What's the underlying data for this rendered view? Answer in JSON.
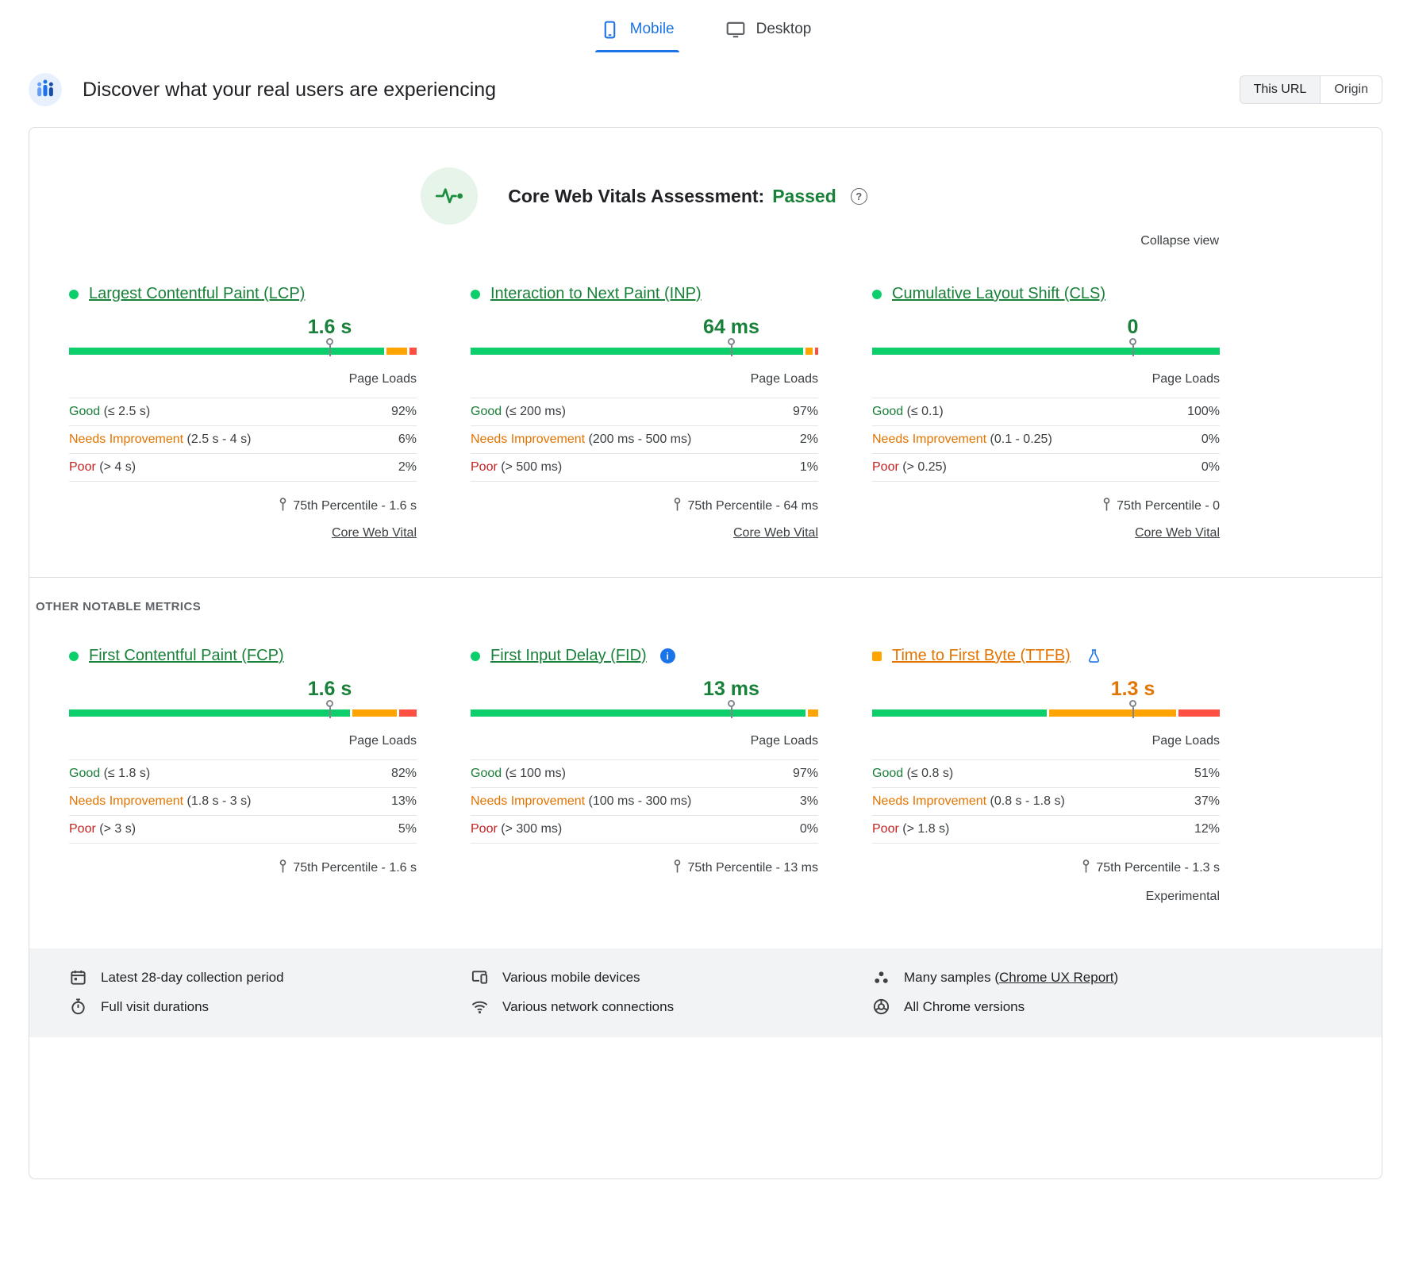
{
  "colors": {
    "blue": "#1a73e8",
    "green-text": "#188038",
    "green-bar": "#0cce6b",
    "orange-text": "#e37400",
    "orange-bar": "#ffa400",
    "red-text": "#c5221f",
    "red-bar": "#ff4e42",
    "border": "#dadce0",
    "footer-bg": "#f1f3f4",
    "assessment-icon-bg": "#e6f4ea"
  },
  "tabs": [
    {
      "label": "Mobile",
      "icon": "mobile-icon",
      "active": true
    },
    {
      "label": "Desktop",
      "icon": "desktop-icon",
      "active": false
    }
  ],
  "field_header": {
    "icon": "field-users-icon",
    "title": "Discover what your real users are experiencing",
    "scope": [
      {
        "label": "This URL",
        "active": true
      },
      {
        "label": "Origin",
        "active": false
      }
    ]
  },
  "assessment": {
    "icon": "pulse-icon",
    "title": "Core Web Vitals Assessment:",
    "result": "Passed",
    "collapse_label": "Collapse view"
  },
  "other_metrics_label": "OTHER NOTABLE METRICS",
  "page_loads_label": "Page Loads",
  "metrics": [
    {
      "id": "lcp",
      "title": "Largest Contentful Paint (LCP)",
      "status": "good",
      "value": "1.6 s",
      "marker_pct": 75,
      "distribution": {
        "good": 92,
        "needs_improvement": 6,
        "poor": 2
      },
      "rows": [
        {
          "label": "Good",
          "range": "(≤ 2.5 s)",
          "value": "92%"
        },
        {
          "label": "Needs Improvement",
          "range": "(2.5 s - 4 s)",
          "value": "6%"
        },
        {
          "label": "Poor",
          "range": "(> 4 s)",
          "value": "2%"
        }
      ],
      "percentile": "75th Percentile - 1.6 s",
      "link": "Core Web Vital"
    },
    {
      "id": "inp",
      "title": "Interaction to Next Paint (INP)",
      "status": "good",
      "value": "64 ms",
      "marker_pct": 75,
      "distribution": {
        "good": 97,
        "needs_improvement": 2,
        "poor": 1
      },
      "rows": [
        {
          "label": "Good",
          "range": "(≤ 200 ms)",
          "value": "97%"
        },
        {
          "label": "Needs Improvement",
          "range": "(200 ms - 500 ms)",
          "value": "2%"
        },
        {
          "label": "Poor",
          "range": "(> 500 ms)",
          "value": "1%"
        }
      ],
      "percentile": "75th Percentile - 64 ms",
      "link": "Core Web Vital"
    },
    {
      "id": "cls",
      "title": "Cumulative Layout Shift (CLS)",
      "status": "good",
      "value": "0",
      "marker_pct": 75,
      "distribution": {
        "good": 100,
        "needs_improvement": 0,
        "poor": 0
      },
      "rows": [
        {
          "label": "Good",
          "range": "(≤ 0.1)",
          "value": "100%"
        },
        {
          "label": "Needs Improvement",
          "range": "(0.1 - 0.25)",
          "value": "0%"
        },
        {
          "label": "Poor",
          "range": "(> 0.25)",
          "value": "0%"
        }
      ],
      "percentile": "75th Percentile - 0",
      "link": "Core Web Vital"
    },
    {
      "id": "fcp",
      "title": "First Contentful Paint (FCP)",
      "status": "good",
      "value": "1.6 s",
      "marker_pct": 75,
      "distribution": {
        "good": 82,
        "needs_improvement": 13,
        "poor": 5
      },
      "rows": [
        {
          "label": "Good",
          "range": "(≤ 1.8 s)",
          "value": "82%"
        },
        {
          "label": "Needs Improvement",
          "range": "(1.8 s - 3 s)",
          "value": "13%"
        },
        {
          "label": "Poor",
          "range": "(> 3 s)",
          "value": "5%"
        }
      ],
      "percentile": "75th Percentile - 1.6 s"
    },
    {
      "id": "fid",
      "title": "First Input Delay (FID)",
      "status": "good",
      "value": "13 ms",
      "marker_pct": 75,
      "info_icon": "info-icon",
      "distribution": {
        "good": 97,
        "needs_improvement": 3,
        "poor": 0
      },
      "rows": [
        {
          "label": "Good",
          "range": "(≤ 100 ms)",
          "value": "97%"
        },
        {
          "label": "Needs Improvement",
          "range": "(100 ms - 300 ms)",
          "value": "3%"
        },
        {
          "label": "Poor",
          "range": "(> 300 ms)",
          "value": "0%"
        }
      ],
      "percentile": "75th Percentile - 13 ms"
    },
    {
      "id": "ttfb",
      "title": "Time to First Byte (TTFB)",
      "status": "warn",
      "value": "1.3 s",
      "marker_pct": 75,
      "flask_icon": "experiment-icon",
      "distribution": {
        "good": 51,
        "needs_improvement": 37,
        "poor": 12
      },
      "rows": [
        {
          "label": "Good",
          "range": "(≤ 0.8 s)",
          "value": "51%"
        },
        {
          "label": "Needs Improvement",
          "range": "(0.8 s - 1.8 s)",
          "value": "37%"
        },
        {
          "label": "Poor",
          "range": "(> 1.8 s)",
          "value": "12%"
        }
      ],
      "percentile": "75th Percentile - 1.3 s",
      "experimental_label": "Experimental"
    }
  ],
  "footer": {
    "columns": [
      {
        "items": [
          {
            "icon": "calendar-icon",
            "text": "Latest 28-day collection period"
          },
          {
            "icon": "timer-icon",
            "text": "Full visit durations"
          }
        ]
      },
      {
        "items": [
          {
            "icon": "devices-icon",
            "text": "Various mobile devices"
          },
          {
            "icon": "network-icon",
            "text": "Various network connections"
          }
        ]
      },
      {
        "items": [
          {
            "icon": "samples-icon",
            "text": "Many samples (",
            "link": "Chrome UX Report",
            "suffix": ")"
          },
          {
            "icon": "chrome-icon",
            "text": "All Chrome versions"
          }
        ]
      }
    ]
  }
}
